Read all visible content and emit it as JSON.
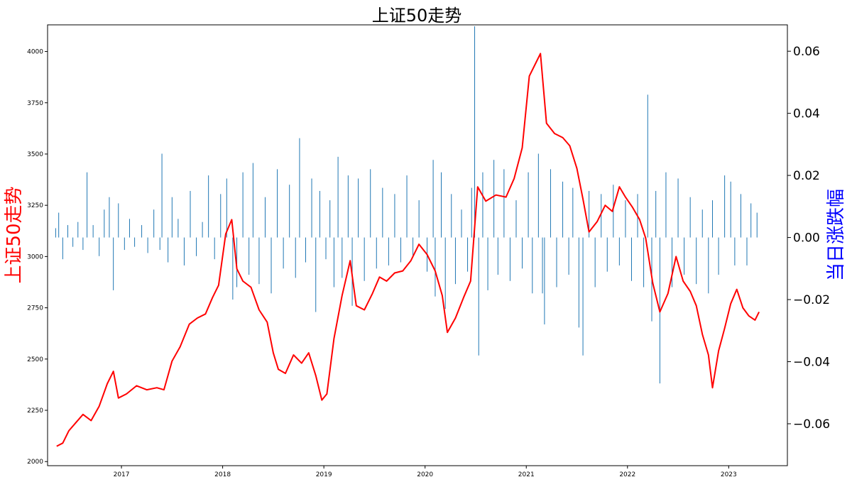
{
  "chart_data": {
    "type": "line",
    "title": "上证50走势",
    "ylabel": "上证50走势",
    "y2label": "当日涨跌幅",
    "colors": {
      "price": "#ff0000",
      "change": "#1f77b4",
      "ylabel": "#ff0000",
      "y2label": "#0000ff"
    },
    "xlim": [
      2016.27,
      2023.58
    ],
    "ylim": [
      1980,
      4130
    ],
    "y2lim": [
      -0.0735,
      0.0685
    ],
    "x_ticks": [
      {
        "value": 2017,
        "label": "2017"
      },
      {
        "value": 2018,
        "label": "2018"
      },
      {
        "value": 2019,
        "label": "2019"
      },
      {
        "value": 2020,
        "label": "2020"
      },
      {
        "value": 2021,
        "label": "2021"
      },
      {
        "value": 2022,
        "label": "2022"
      },
      {
        "value": 2023,
        "label": "2023"
      }
    ],
    "y_ticks": [
      {
        "value": 2000,
        "label": "2000"
      },
      {
        "value": 2250,
        "label": "2250"
      },
      {
        "value": 2500,
        "label": "2500"
      },
      {
        "value": 2750,
        "label": "2750"
      },
      {
        "value": 3000,
        "label": "3000"
      },
      {
        "value": 3250,
        "label": "3250"
      },
      {
        "value": 3500,
        "label": "3500"
      },
      {
        "value": 3750,
        "label": "3750"
      },
      {
        "value": 4000,
        "label": "4000"
      }
    ],
    "y2_ticks": [
      {
        "value": 0.06,
        "label": "0.06"
      },
      {
        "value": 0.04,
        "label": "0.04"
      },
      {
        "value": 0.02,
        "label": "0.02"
      },
      {
        "value": 0.0,
        "label": "0.00"
      },
      {
        "value": -0.02,
        "label": "−0.02"
      },
      {
        "value": -0.04,
        "label": "−0.04"
      },
      {
        "value": -0.06,
        "label": "−0.06"
      }
    ],
    "series": [
      {
        "name": "上证50走势",
        "axis": "left",
        "kind": "line",
        "points": [
          [
            2016.36,
            2075
          ],
          [
            2016.42,
            2090
          ],
          [
            2016.48,
            2150
          ],
          [
            2016.55,
            2190
          ],
          [
            2016.62,
            2230
          ],
          [
            2016.7,
            2200
          ],
          [
            2016.78,
            2270
          ],
          [
            2016.86,
            2380
          ],
          [
            2016.92,
            2440
          ],
          [
            2016.97,
            2310
          ],
          [
            2017.05,
            2330
          ],
          [
            2017.15,
            2370
          ],
          [
            2017.25,
            2350
          ],
          [
            2017.35,
            2360
          ],
          [
            2017.42,
            2350
          ],
          [
            2017.5,
            2490
          ],
          [
            2017.58,
            2560
          ],
          [
            2017.67,
            2670
          ],
          [
            2017.75,
            2700
          ],
          [
            2017.83,
            2720
          ],
          [
            2017.9,
            2800
          ],
          [
            2017.96,
            2860
          ],
          [
            2018.03,
            3110
          ],
          [
            2018.09,
            3180
          ],
          [
            2018.14,
            2940
          ],
          [
            2018.2,
            2880
          ],
          [
            2018.28,
            2850
          ],
          [
            2018.36,
            2740
          ],
          [
            2018.44,
            2680
          ],
          [
            2018.5,
            2530
          ],
          [
            2018.55,
            2450
          ],
          [
            2018.62,
            2430
          ],
          [
            2018.7,
            2520
          ],
          [
            2018.78,
            2480
          ],
          [
            2018.85,
            2530
          ],
          [
            2018.92,
            2420
          ],
          [
            2018.98,
            2300
          ],
          [
            2019.03,
            2330
          ],
          [
            2019.1,
            2600
          ],
          [
            2019.18,
            2810
          ],
          [
            2019.26,
            2980
          ],
          [
            2019.32,
            2760
          ],
          [
            2019.4,
            2740
          ],
          [
            2019.48,
            2820
          ],
          [
            2019.55,
            2900
          ],
          [
            2019.62,
            2880
          ],
          [
            2019.7,
            2920
          ],
          [
            2019.78,
            2930
          ],
          [
            2019.86,
            2980
          ],
          [
            2019.94,
            3060
          ],
          [
            2020.02,
            3010
          ],
          [
            2020.1,
            2930
          ],
          [
            2020.17,
            2810
          ],
          [
            2020.22,
            2630
          ],
          [
            2020.3,
            2700
          ],
          [
            2020.38,
            2800
          ],
          [
            2020.45,
            2880
          ],
          [
            2020.52,
            3340
          ],
          [
            2020.6,
            3270
          ],
          [
            2020.7,
            3300
          ],
          [
            2020.8,
            3290
          ],
          [
            2020.88,
            3380
          ],
          [
            2020.96,
            3530
          ],
          [
            2021.03,
            3880
          ],
          [
            2021.1,
            3950
          ],
          [
            2021.14,
            3990
          ],
          [
            2021.2,
            3650
          ],
          [
            2021.28,
            3600
          ],
          [
            2021.36,
            3580
          ],
          [
            2021.43,
            3540
          ],
          [
            2021.5,
            3430
          ],
          [
            2021.56,
            3280
          ],
          [
            2021.62,
            3120
          ],
          [
            2021.7,
            3170
          ],
          [
            2021.78,
            3250
          ],
          [
            2021.85,
            3220
          ],
          [
            2021.92,
            3340
          ],
          [
            2021.98,
            3290
          ],
          [
            2022.05,
            3240
          ],
          [
            2022.12,
            3180
          ],
          [
            2022.18,
            3090
          ],
          [
            2022.25,
            2870
          ],
          [
            2022.32,
            2730
          ],
          [
            2022.4,
            2820
          ],
          [
            2022.48,
            3000
          ],
          [
            2022.55,
            2880
          ],
          [
            2022.62,
            2830
          ],
          [
            2022.68,
            2760
          ],
          [
            2022.74,
            2620
          ],
          [
            2022.8,
            2520
          ],
          [
            2022.84,
            2360
          ],
          [
            2022.9,
            2540
          ],
          [
            2022.96,
            2650
          ],
          [
            2023.02,
            2770
          ],
          [
            2023.08,
            2840
          ],
          [
            2023.14,
            2750
          ],
          [
            2023.2,
            2710
          ],
          [
            2023.26,
            2690
          ],
          [
            2023.3,
            2730
          ]
        ]
      },
      {
        "name": "当日涨跌幅",
        "axis": "right",
        "kind": "vlines",
        "points": [
          [
            2016.35,
            0.003
          ],
          [
            2016.38,
            0.008
          ],
          [
            2016.42,
            -0.007
          ],
          [
            2016.47,
            0.004
          ],
          [
            2016.52,
            -0.003
          ],
          [
            2016.57,
            0.005
          ],
          [
            2016.62,
            -0.004
          ],
          [
            2016.66,
            0.021
          ],
          [
            2016.72,
            0.004
          ],
          [
            2016.78,
            -0.006
          ],
          [
            2016.83,
            0.009
          ],
          [
            2016.88,
            0.013
          ],
          [
            2016.92,
            -0.017
          ],
          [
            2016.97,
            0.011
          ],
          [
            2017.03,
            -0.004
          ],
          [
            2017.08,
            0.006
          ],
          [
            2017.13,
            -0.003
          ],
          [
            2017.2,
            0.004
          ],
          [
            2017.26,
            -0.005
          ],
          [
            2017.32,
            0.009
          ],
          [
            2017.38,
            -0.004
          ],
          [
            2017.4,
            0.027
          ],
          [
            2017.46,
            -0.008
          ],
          [
            2017.5,
            0.013
          ],
          [
            2017.56,
            0.006
          ],
          [
            2017.62,
            -0.009
          ],
          [
            2017.68,
            0.015
          ],
          [
            2017.74,
            -0.006
          ],
          [
            2017.8,
            0.005
          ],
          [
            2017.86,
            0.02
          ],
          [
            2017.92,
            -0.007
          ],
          [
            2017.98,
            0.014
          ],
          [
            2018.04,
            0.019
          ],
          [
            2018.1,
            -0.02
          ],
          [
            2018.14,
            -0.016
          ],
          [
            2018.2,
            0.021
          ],
          [
            2018.26,
            -0.012
          ],
          [
            2018.3,
            0.024
          ],
          [
            2018.36,
            -0.015
          ],
          [
            2018.42,
            0.013
          ],
          [
            2018.48,
            -0.018
          ],
          [
            2018.54,
            0.022
          ],
          [
            2018.6,
            -0.01
          ],
          [
            2018.66,
            0.017
          ],
          [
            2018.72,
            -0.013
          ],
          [
            2018.76,
            0.032
          ],
          [
            2018.82,
            -0.008
          ],
          [
            2018.88,
            0.019
          ],
          [
            2018.92,
            -0.024
          ],
          [
            2018.96,
            0.015
          ],
          [
            2019.02,
            -0.007
          ],
          [
            2019.06,
            0.012
          ],
          [
            2019.1,
            -0.016
          ],
          [
            2019.14,
            0.026
          ],
          [
            2019.18,
            -0.013
          ],
          [
            2019.24,
            0.02
          ],
          [
            2019.28,
            -0.022
          ],
          [
            2019.34,
            0.019
          ],
          [
            2019.4,
            -0.014
          ],
          [
            2019.46,
            0.022
          ],
          [
            2019.52,
            -0.01
          ],
          [
            2019.58,
            0.016
          ],
          [
            2019.64,
            -0.009
          ],
          [
            2019.7,
            0.014
          ],
          [
            2019.76,
            -0.008
          ],
          [
            2019.82,
            0.02
          ],
          [
            2019.88,
            -0.006
          ],
          [
            2019.94,
            0.012
          ],
          [
            2020.02,
            -0.011
          ],
          [
            2020.08,
            0.025
          ],
          [
            2020.1,
            -0.019
          ],
          [
            2020.16,
            0.021
          ],
          [
            2020.2,
            -0.023
          ],
          [
            2020.26,
            0.014
          ],
          [
            2020.3,
            -0.015
          ],
          [
            2020.36,
            0.009
          ],
          [
            2020.42,
            -0.011
          ],
          [
            2020.46,
            0.016
          ],
          [
            2020.49,
            0.068
          ],
          [
            2020.53,
            -0.038
          ],
          [
            2020.57,
            0.021
          ],
          [
            2020.62,
            -0.017
          ],
          [
            2020.68,
            0.025
          ],
          [
            2020.72,
            -0.012
          ],
          [
            2020.78,
            0.022
          ],
          [
            2020.84,
            -0.014
          ],
          [
            2020.9,
            0.012
          ],
          [
            2020.96,
            -0.01
          ],
          [
            2021.02,
            0.021
          ],
          [
            2021.06,
            -0.018
          ],
          [
            2021.12,
            0.027
          ],
          [
            2021.16,
            -0.018
          ],
          [
            2021.18,
            -0.028
          ],
          [
            2021.24,
            0.022
          ],
          [
            2021.3,
            -0.016
          ],
          [
            2021.36,
            0.018
          ],
          [
            2021.42,
            -0.012
          ],
          [
            2021.46,
            0.016
          ],
          [
            2021.52,
            -0.029
          ],
          [
            2021.56,
            -0.038
          ],
          [
            2021.62,
            0.015
          ],
          [
            2021.68,
            -0.016
          ],
          [
            2021.74,
            0.014
          ],
          [
            2021.8,
            -0.011
          ],
          [
            2021.86,
            0.017
          ],
          [
            2021.92,
            -0.009
          ],
          [
            2021.98,
            0.012
          ],
          [
            2022.04,
            -0.014
          ],
          [
            2022.1,
            0.014
          ],
          [
            2022.16,
            -0.016
          ],
          [
            2022.2,
            0.046
          ],
          [
            2022.24,
            -0.027
          ],
          [
            2022.28,
            0.015
          ],
          [
            2022.32,
            -0.047
          ],
          [
            2022.38,
            0.021
          ],
          [
            2022.44,
            -0.016
          ],
          [
            2022.5,
            0.019
          ],
          [
            2022.56,
            -0.012
          ],
          [
            2022.62,
            0.013
          ],
          [
            2022.68,
            -0.015
          ],
          [
            2022.74,
            0.009
          ],
          [
            2022.8,
            -0.018
          ],
          [
            2022.84,
            0.012
          ],
          [
            2022.9,
            -0.012
          ],
          [
            2022.96,
            0.02
          ],
          [
            2023.02,
            0.018
          ],
          [
            2023.06,
            -0.009
          ],
          [
            2023.12,
            0.014
          ],
          [
            2023.18,
            -0.009
          ],
          [
            2023.22,
            0.011
          ],
          [
            2023.28,
            0.008
          ]
        ]
      }
    ]
  }
}
